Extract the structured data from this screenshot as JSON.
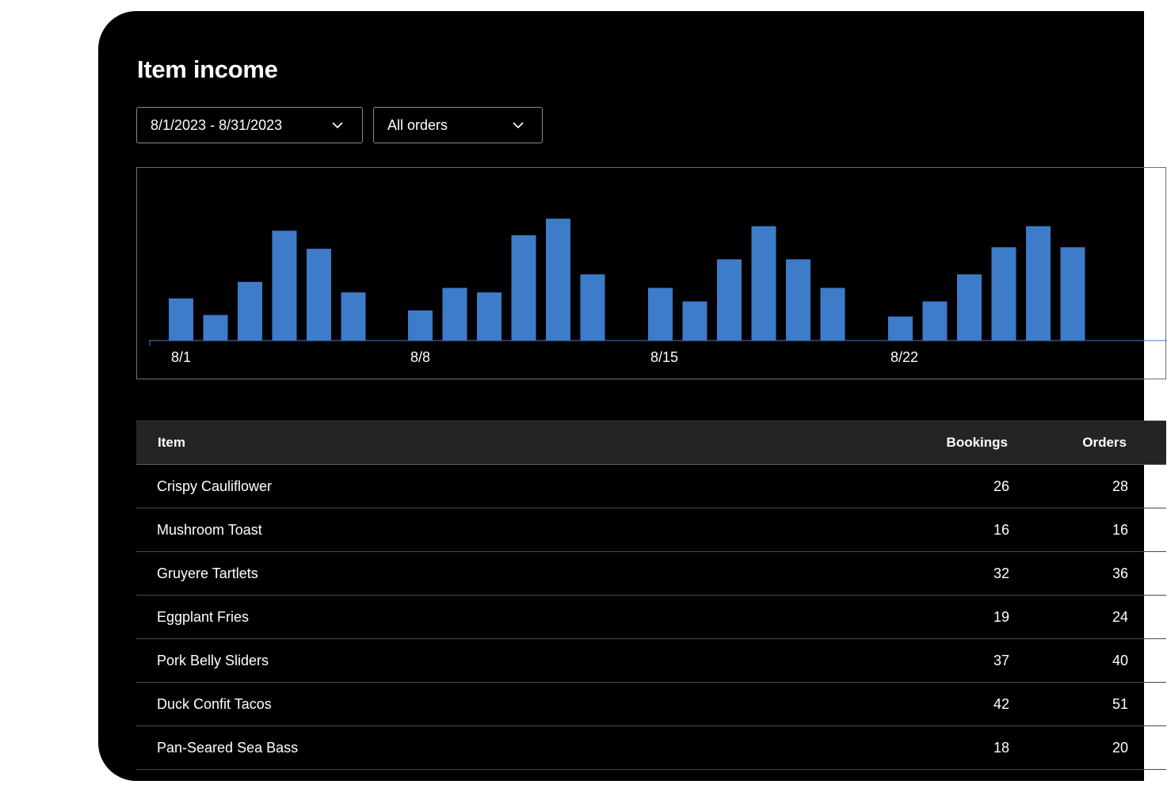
{
  "page": {
    "title": "Item income"
  },
  "filters": {
    "date_range": "8/1/2023 - 8/31/2023",
    "order_type": "All orders"
  },
  "colors": {
    "bar": "#3e7bc8",
    "background": "#000000",
    "header_bg": "#242424"
  },
  "chart_data": {
    "type": "bar",
    "xlabel": "",
    "ylabel": "",
    "tick_labels": [
      "8/1",
      "8/8",
      "8/15",
      "8/22"
    ],
    "grid": false,
    "groups": [
      {
        "label": "8/1",
        "values": [
          28,
          17,
          39,
          73,
          61,
          32
        ]
      },
      {
        "label": "8/8",
        "values": [
          20,
          35,
          32,
          70,
          81,
          44
        ]
      },
      {
        "label": "8/15",
        "values": [
          35,
          26,
          54,
          76,
          54,
          35
        ]
      },
      {
        "label": "8/22",
        "values": [
          16,
          26,
          44,
          62,
          76,
          62
        ]
      }
    ]
  },
  "table": {
    "headers": {
      "item": "Item",
      "bookings": "Bookings",
      "orders": "Orders"
    },
    "rows": [
      {
        "item": "Crispy Cauliflower",
        "bookings": "26",
        "orders": "28"
      },
      {
        "item": "Mushroom Toast",
        "bookings": "16",
        "orders": "16"
      },
      {
        "item": "Gruyere Tartlets",
        "bookings": "32",
        "orders": "36"
      },
      {
        "item": "Eggplant Fries",
        "bookings": "19",
        "orders": "24"
      },
      {
        "item": "Pork Belly Sliders",
        "bookings": "37",
        "orders": "40"
      },
      {
        "item": "Duck Confit Tacos",
        "bookings": "42",
        "orders": "51"
      },
      {
        "item": "Pan-Seared Sea Bass",
        "bookings": "18",
        "orders": "20"
      }
    ]
  }
}
